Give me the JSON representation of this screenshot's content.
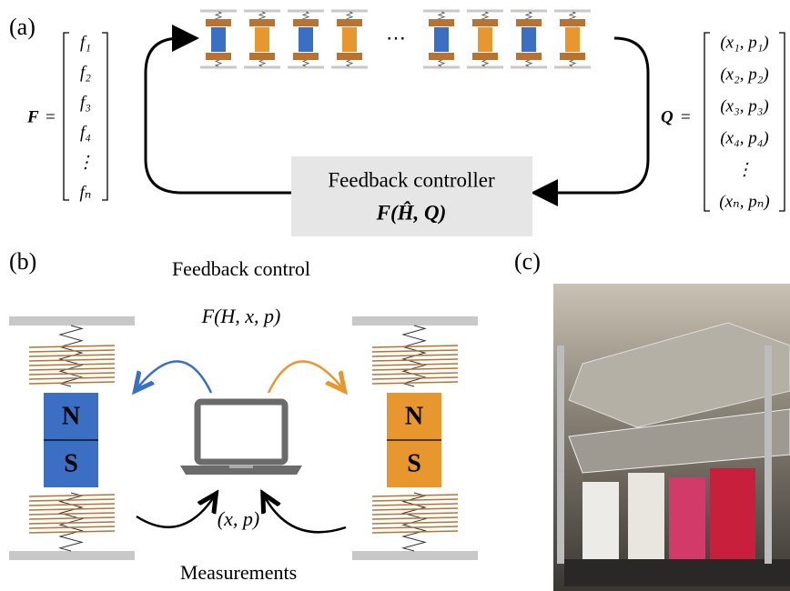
{
  "panel_a": {
    "label": "(a)",
    "force_vector": {
      "symbol": "F",
      "equals": "=",
      "entries": [
        "f₁",
        "f₂",
        "f₃",
        "f₄",
        "⋮",
        "fₙ"
      ]
    },
    "state_vector": {
      "symbol": "Q",
      "equals": "=",
      "entries": [
        "(x₁, p₁)",
        "(x₂, p₂)",
        "(x₃, p₃)",
        "(x₄, p₄)",
        "⋮",
        "(xₙ, pₙ)"
      ]
    },
    "ellipsis": "⋯",
    "controller": {
      "title": "Feedback controller",
      "formula": "F(Ĥ, Q)"
    }
  },
  "panel_b": {
    "label": "(b)",
    "title": "Feedback control",
    "formula": "F(H, x, p)",
    "left_magnet": {
      "north": "N",
      "south": "S"
    },
    "right_magnet": {
      "north": "N",
      "south": "S"
    },
    "measurement": "(x, p)",
    "caption": "Measurements"
  },
  "panel_c": {
    "label": "(c)"
  }
}
